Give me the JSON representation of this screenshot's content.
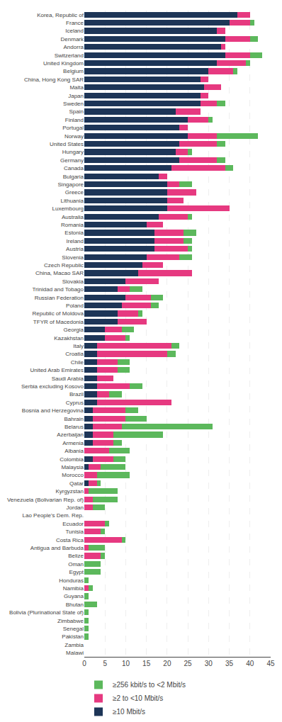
{
  "chart_data": {
    "type": "bar",
    "orientation": "horizontal",
    "stacked": true,
    "categories": [
      "Korea, Republic of",
      "France",
      "Iceland",
      "Denmark",
      "Andorra",
      "Switzerland",
      "United Kingdom",
      "Belgium",
      "China, Hong Kong SAR",
      "Malta",
      "Japan",
      "Sweden",
      "Spain",
      "Finland",
      "Portugal",
      "Norway",
      "United States",
      "Hungary",
      "Germany",
      "Canada",
      "Bulgaria",
      "Singapore",
      "Greece",
      "Lithuania",
      "Luxembourg",
      "Australia",
      "Romania",
      "Estonia",
      "Ireland",
      "Austria",
      "Slovenia",
      "Czech Republic",
      "China, Macao SAR",
      "Slovakia",
      "Trinidad and Tobago",
      "Russian Federation",
      "Poland",
      "Republic of Moldova",
      "TFYR of Macedonia",
      "Georgia",
      "Kazakhstan",
      "Italy",
      "Croatia",
      "Chile",
      "United Arab Emirates",
      "Saudi Arabia",
      "Serbia excluding Kosovo",
      "Brazil",
      "Cyprus",
      "Bosnia and Herzegovina",
      "Bahrain",
      "Belarus",
      "Azerbaijan",
      "Armenia",
      "Albania",
      "Colombia",
      "Malaysia",
      "Morocco",
      "Qatar",
      "Kyrgyzstan",
      "Venezuela (Bolivarian Rep. of)",
      "Jordan",
      "Lao People's Dem. Rep.",
      "Ecuador",
      "Tunisia",
      "Costa Rica",
      "Antigua and Barbuda",
      "Belize",
      "Oman",
      "Egypt",
      "Honduras",
      "Namibia",
      "Guyana",
      "Bhutan",
      "Bolivia (Plurinational State of)",
      "Zimbabwe",
      "Senegal",
      "Pakistan",
      "Zambia",
      "Malawi"
    ],
    "series": [
      {
        "name": "≥10 Mbit/s",
        "color": "#1d3557",
        "values": [
          37,
          35,
          32,
          34,
          33,
          34,
          32,
          30,
          28,
          29,
          28,
          28,
          22,
          25,
          23,
          25,
          23,
          22,
          23,
          21,
          18,
          20,
          20,
          20,
          20,
          18,
          15,
          17,
          17,
          17,
          15,
          14,
          13,
          10,
          8,
          10,
          9,
          8,
          8,
          5,
          5,
          3,
          3,
          3,
          3,
          3,
          3,
          3,
          3,
          2,
          2,
          2,
          2,
          2,
          0,
          2,
          1,
          0,
          1,
          0,
          0,
          0,
          0,
          0,
          0,
          0,
          0,
          0,
          0,
          0,
          0,
          0,
          0,
          0,
          0,
          0,
          0,
          0,
          0,
          0
        ]
      },
      {
        "name": "≥2 to <10 Mbit/s",
        "color": "#e63980",
        "values": [
          3,
          5,
          2,
          6,
          1,
          6,
          7,
          6,
          2,
          4,
          2,
          4,
          6,
          5,
          2,
          7,
          9,
          3,
          9,
          13,
          2,
          3,
          7,
          4,
          15,
          7,
          4,
          7,
          7,
          8,
          8,
          5,
          13,
          8,
          3,
          6,
          7,
          5,
          7,
          4,
          5,
          18,
          17,
          5,
          5,
          4,
          8,
          3,
          18,
          8,
          8,
          7,
          5,
          5,
          6,
          5,
          3,
          3,
          2,
          1,
          2,
          2,
          0,
          5,
          4,
          9,
          1,
          4,
          0,
          0,
          0,
          1,
          0,
          0,
          0,
          0,
          0,
          0,
          0,
          0
        ]
      },
      {
        "name": "≥256 kbit/s to <2 Mbit/s",
        "color": "#5cb85c",
        "values": [
          0,
          1,
          0,
          2,
          0,
          3,
          1,
          1,
          0,
          0,
          0,
          2,
          0,
          1,
          0,
          10,
          2,
          1,
          2,
          2,
          0,
          3,
          0,
          0,
          0,
          1,
          0,
          3,
          2,
          1,
          3,
          0,
          0,
          0,
          3,
          3,
          2,
          1,
          0,
          3,
          1,
          2,
          2,
          3,
          3,
          0,
          3,
          3,
          0,
          3,
          5,
          22,
          12,
          2,
          5,
          3,
          6,
          8,
          1,
          7,
          6,
          3,
          0,
          1,
          1,
          1,
          4,
          1,
          4,
          4,
          1,
          1,
          1,
          3,
          1,
          1,
          1,
          1,
          0,
          0
        ]
      }
    ],
    "xlim": [
      0,
      45
    ],
    "xticks": [
      0,
      5,
      10,
      15,
      20,
      25,
      30,
      35,
      40,
      45
    ],
    "grid": true,
    "legend": "bottom"
  }
}
